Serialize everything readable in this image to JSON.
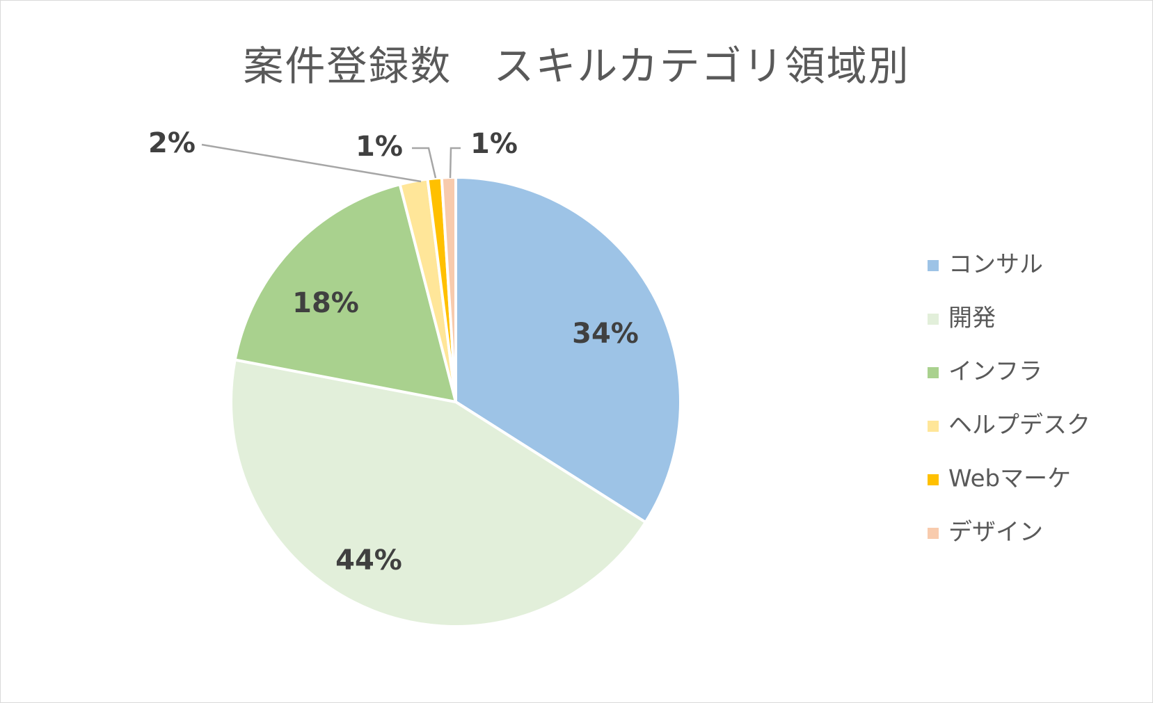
{
  "chart_data": {
    "type": "pie",
    "title": "案件登録数　スキルカテゴリ領域別",
    "legend_position": "right",
    "slices": [
      {
        "name": "コンサル",
        "value": 34,
        "label": "34%",
        "color": "#9dc3e6"
      },
      {
        "name": "開発",
        "value": 44,
        "label": "44%",
        "color": "#e2efda"
      },
      {
        "name": "インフラ",
        "value": 18,
        "label": "18%",
        "color": "#a9d18e"
      },
      {
        "name": "ヘルプデスク",
        "value": 2,
        "label": "2%",
        "color": "#ffe699"
      },
      {
        "name": "Webマーケ",
        "value": 1,
        "label": "1%",
        "color": "#ffc000"
      },
      {
        "name": "デザイン",
        "value": 1,
        "label": "1%",
        "color": "#f8cbad"
      }
    ]
  }
}
